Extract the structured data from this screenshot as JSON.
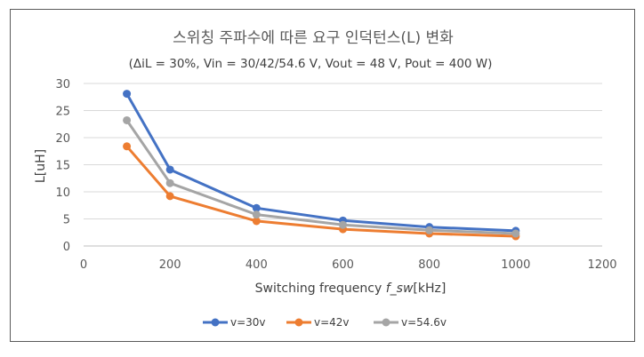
{
  "chart_data": {
    "type": "line",
    "title": "스위칭 주파수에 따른 요구 인덕턴스(L) 변화",
    "subtitle": "(ΔiL = 30%, Vin = 30/42/54.6 V, Vout = 48 V, Pout = 400 W)",
    "xlabel_prefix": "Switching frequency ",
    "xlabel_var": "f_sw",
    "xlabel_suffix": "[kHz]",
    "ylabel": "L[uH]",
    "xlim": [
      0,
      1200
    ],
    "ylim": [
      0,
      30
    ],
    "x_ticks": [
      "0",
      "200",
      "400",
      "600",
      "800",
      "1000",
      "1200"
    ],
    "y_ticks": [
      "0",
      "5",
      "10",
      "15",
      "20",
      "25",
      "30"
    ],
    "grid": "horizontal",
    "legend_position": "bottom",
    "x": [
      100,
      200,
      400,
      600,
      800,
      1000
    ],
    "series": [
      {
        "name": "v=30v",
        "color": "#4472C4",
        "values": [
          28.1,
          14.1,
          7.0,
          4.7,
          3.5,
          2.8
        ]
      },
      {
        "name": "v=42v",
        "color": "#ED7D31",
        "values": [
          18.4,
          9.2,
          4.6,
          3.1,
          2.3,
          1.8
        ]
      },
      {
        "name": "v=54.6v",
        "color": "#A5A5A5",
        "values": [
          23.2,
          11.6,
          5.8,
          3.9,
          2.9,
          2.3
        ]
      }
    ]
  }
}
